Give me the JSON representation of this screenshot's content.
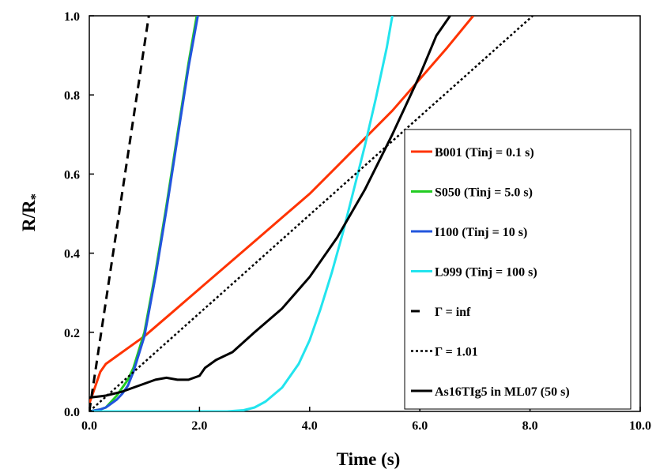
{
  "chart_data": {
    "type": "line",
    "title": "",
    "xlabel": "Time (s)",
    "ylabel": "R/R*",
    "ylabel_main": "R/R",
    "ylabel_sub": "*",
    "xlim": [
      0,
      10
    ],
    "ylim": [
      0,
      1
    ],
    "xticks": [
      0,
      2,
      4,
      6,
      8,
      10
    ],
    "xtick_labels": [
      "0.0",
      "2.0",
      "4.0",
      "6.0",
      "8.0",
      "10.0"
    ],
    "yticks": [
      0,
      0.2,
      0.4,
      0.6,
      0.8,
      1.0
    ],
    "ytick_labels": [
      "0.0",
      "0.2",
      "0.4",
      "0.6",
      "0.8",
      "1.0"
    ],
    "grid": false,
    "legend_position": "right",
    "series": [
      {
        "name": "B001 (Tinj = 0.1 s)",
        "color": "#ff3300",
        "dash": "solid",
        "x": [
          0,
          0.05,
          0.1,
          0.2,
          0.3,
          0.5,
          0.7,
          1.0,
          1.5,
          2.0,
          2.5,
          3.0,
          3.5,
          4.0,
          4.5,
          5.0,
          5.5,
          6.0,
          6.5,
          6.97
        ],
        "y": [
          0.02,
          0.04,
          0.06,
          0.1,
          0.12,
          0.14,
          0.16,
          0.19,
          0.25,
          0.31,
          0.37,
          0.43,
          0.49,
          0.55,
          0.62,
          0.69,
          0.76,
          0.84,
          0.92,
          1.0
        ]
      },
      {
        "name": "S050 (Tinj = 5.0 s)",
        "color": "#22cc22",
        "dash": "solid",
        "x": [
          0,
          0.2,
          0.3,
          0.4,
          0.5,
          0.6,
          0.7,
          0.8,
          1.0,
          1.2,
          1.4,
          1.6,
          1.8,
          1.95
        ],
        "y": [
          0.0,
          0.005,
          0.01,
          0.025,
          0.04,
          0.06,
          0.08,
          0.11,
          0.2,
          0.35,
          0.52,
          0.7,
          0.88,
          1.0
        ]
      },
      {
        "name": "I100 (Tinj = 10 s)",
        "color": "#2255dd",
        "dash": "solid",
        "x": [
          0,
          0.2,
          0.3,
          0.4,
          0.5,
          0.6,
          0.7,
          0.8,
          1.0,
          1.2,
          1.4,
          1.6,
          1.8,
          1.97
        ],
        "y": [
          0.0,
          0.005,
          0.01,
          0.02,
          0.03,
          0.045,
          0.065,
          0.1,
          0.19,
          0.34,
          0.51,
          0.69,
          0.87,
          1.0
        ]
      },
      {
        "name": "L999 (Tinj = 100 s)",
        "color": "#22e4ee",
        "dash": "solid",
        "x": [
          0,
          2.5,
          2.8,
          3.0,
          3.2,
          3.5,
          3.8,
          4.0,
          4.2,
          4.4,
          4.6,
          4.8,
          5.0,
          5.2,
          5.4,
          5.5
        ],
        "y": [
          0.0,
          0.0,
          0.003,
          0.01,
          0.025,
          0.06,
          0.12,
          0.18,
          0.26,
          0.35,
          0.45,
          0.56,
          0.67,
          0.79,
          0.92,
          1.0
        ]
      },
      {
        "name": "Γ = inf",
        "color": "#000000",
        "dash": "dashed",
        "x": [
          0,
          1.08
        ],
        "y": [
          0.0,
          1.0
        ]
      },
      {
        "name": "Γ = 1.01",
        "color": "#000000",
        "dash": "dotted",
        "x": [
          0,
          8.05
        ],
        "y": [
          0.0,
          1.0
        ]
      },
      {
        "name": "As16TIg5 in ML07 (50 s)",
        "color": "#000000",
        "dash": "solid",
        "x": [
          0,
          0.3,
          0.6,
          1.0,
          1.2,
          1.4,
          1.6,
          1.8,
          2.0,
          2.1,
          2.3,
          2.6,
          3.0,
          3.5,
          4.0,
          4.5,
          5.0,
          5.5,
          6.0,
          6.3,
          6.55
        ],
        "y": [
          0.035,
          0.04,
          0.05,
          0.07,
          0.08,
          0.085,
          0.08,
          0.08,
          0.09,
          0.11,
          0.13,
          0.15,
          0.2,
          0.26,
          0.34,
          0.44,
          0.56,
          0.7,
          0.85,
          0.95,
          1.0
        ]
      }
    ]
  }
}
